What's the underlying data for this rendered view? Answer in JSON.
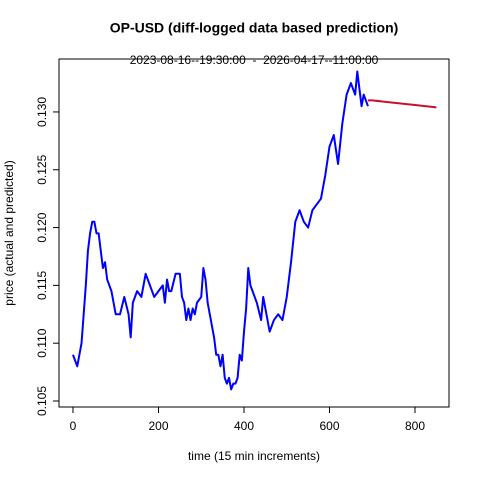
{
  "chart_data": {
    "type": "line",
    "title": "OP-USD (diff-logged data based prediction)",
    "subtitle": "2023-08-16--19:30:00  -  2026-04-17--11:00:00",
    "xlabel": "time (15 min increments)",
    "ylabel": "price (actual and predicted)",
    "xlim": [
      -32.7,
      879.5
    ],
    "ylim": [
      0.10448,
      0.13458
    ],
    "xticks": [
      0,
      200,
      400,
      600,
      800
    ],
    "yticks": [
      0.105,
      {
        "value": 0.11,
        "label": "0.110"
      },
      0.115,
      {
        "value": 0.12,
        "label": "0.120"
      },
      0.125,
      {
        "value": 0.13,
        "label": "0.130"
      }
    ],
    "series": [
      {
        "color": "#0000ff",
        "x": [
          0,
          10,
          20,
          25,
          30,
          35,
          40,
          45,
          50,
          55,
          60,
          65,
          70,
          75,
          80,
          90,
          100,
          110,
          120,
          130,
          135,
          140,
          150,
          160,
          170,
          180,
          190,
          200,
          210,
          215,
          220,
          225,
          230,
          240,
          250,
          255,
          260,
          265,
          270,
          275,
          280,
          285,
          290,
          300,
          305,
          310,
          315,
          320,
          330,
          335,
          340,
          345,
          350,
          355,
          360,
          365,
          370,
          375,
          380,
          385,
          390,
          395,
          400,
          405,
          410,
          415,
          420,
          430,
          440,
          445,
          450,
          460,
          470,
          480,
          490,
          500,
          510,
          520,
          530,
          540,
          550,
          560,
          570,
          580,
          590,
          600,
          610,
          620,
          630,
          640,
          650,
          660,
          665,
          670,
          675,
          680,
          690
        ],
        "values": [
          0.109,
          0.108,
          0.11,
          0.1125,
          0.115,
          0.118,
          0.1195,
          0.1205,
          0.1205,
          0.1195,
          0.1195,
          0.118,
          0.1165,
          0.117,
          0.1155,
          0.1145,
          0.1125,
          0.1125,
          0.114,
          0.1125,
          0.1105,
          0.1135,
          0.1145,
          0.114,
          0.116,
          0.115,
          0.114,
          0.1145,
          0.115,
          0.1135,
          0.1155,
          0.1145,
          0.1145,
          0.116,
          0.116,
          0.114,
          0.1135,
          0.112,
          0.113,
          0.112,
          0.113,
          0.1125,
          0.1135,
          0.114,
          0.1165,
          0.1155,
          0.1135,
          0.1125,
          0.1105,
          0.109,
          0.109,
          0.108,
          0.109,
          0.107,
          0.1065,
          0.107,
          0.106,
          0.1065,
          0.1065,
          0.107,
          0.109,
          0.1085,
          0.111,
          0.113,
          0.1165,
          0.115,
          0.1145,
          0.1135,
          0.112,
          0.114,
          0.113,
          0.111,
          0.112,
          0.1125,
          0.112,
          0.114,
          0.117,
          0.1205,
          0.1215,
          0.1205,
          0.12,
          0.1215,
          0.122,
          0.1225,
          0.1245,
          0.127,
          0.128,
          0.1255,
          0.129,
          0.1315,
          0.1325,
          0.1315,
          0.1335,
          0.132,
          0.1305,
          0.1315,
          0.1305
        ]
      },
      {
        "color": "#c8102e",
        "x": [
          690,
          700,
          750,
          800,
          850
        ],
        "values": [
          0.131,
          0.131,
          0.1308,
          0.1306,
          0.1304
        ]
      }
    ]
  }
}
